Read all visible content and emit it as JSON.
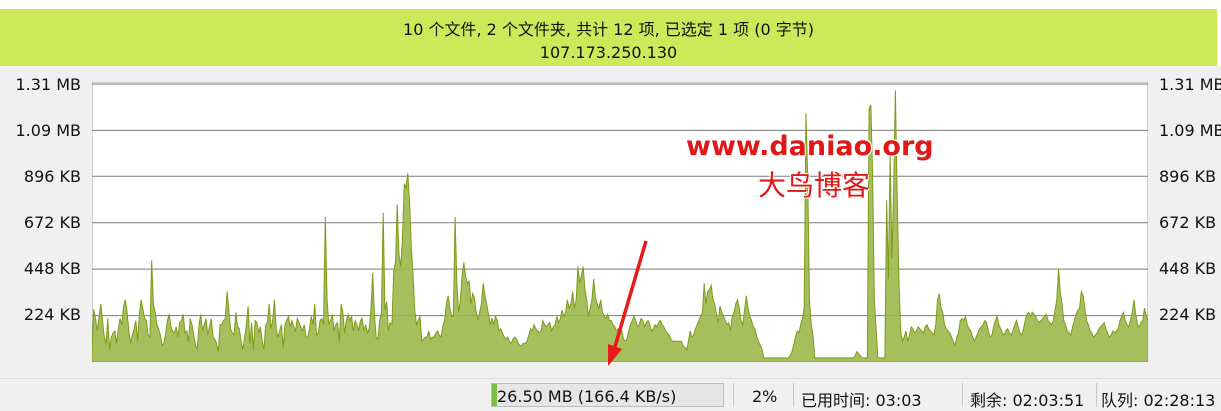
{
  "status_banner": {
    "summary": "10 个文件, 2 个文件夹, 共计 12 项, 已选定 1 项 (0 字节)",
    "ip": "107.173.250.130"
  },
  "watermark": {
    "url": "www.daniao.org",
    "name": "大鸟博客"
  },
  "chart_data": {
    "type": "area",
    "y_ticks": [
      "1.31 MB",
      "1.09 MB",
      "896 KB",
      "672 KB",
      "448 KB",
      "224 KB"
    ],
    "ylim_kb": [
      0,
      1341
    ],
    "fill_color": "#9ab84a",
    "line_color": "#7f9a1a",
    "grid": true,
    "values_kb": [
      60,
      254,
      210,
      150,
      215,
      280,
      200,
      120,
      90,
      210,
      60,
      120,
      140,
      150,
      90,
      160,
      210,
      180,
      270,
      300,
      240,
      150,
      90,
      130,
      160,
      200,
      100,
      230,
      300,
      255,
      210,
      200,
      130,
      120,
      490,
      280,
      240,
      180,
      160,
      130,
      80,
      90,
      140,
      200,
      230,
      170,
      150,
      140,
      170,
      120,
      190,
      200,
      230,
      140,
      150,
      100,
      210,
      180,
      130,
      80,
      60,
      180,
      230,
      150,
      180,
      210,
      130,
      170,
      210,
      120,
      110,
      90,
      50,
      180,
      180,
      200,
      210,
      340,
      250,
      160,
      140,
      130,
      240,
      170,
      160,
      100,
      60,
      120,
      180,
      270,
      90,
      190,
      60,
      200,
      190,
      140,
      170,
      100,
      60,
      180,
      190,
      280,
      160,
      200,
      300,
      160,
      120,
      150,
      180,
      70,
      180,
      200,
      220,
      170,
      200,
      170,
      150,
      210,
      190,
      170,
      150,
      180,
      120,
      120,
      160,
      220,
      180,
      280,
      130,
      140,
      200,
      210,
      180,
      700,
      300,
      180,
      200,
      230,
      150,
      180,
      190,
      100,
      280,
      240,
      140,
      200,
      230,
      200,
      220,
      150,
      200,
      180,
      150,
      200,
      210,
      150,
      180,
      140,
      160,
      250,
      430,
      230,
      120,
      110,
      200,
      240,
      720,
      250,
      290,
      150,
      190,
      180,
      440,
      480,
      760,
      520,
      460,
      600,
      860,
      840,
      910,
      780,
      560,
      420,
      250,
      180,
      200,
      220,
      100,
      110,
      120,
      120,
      150,
      110,
      120,
      120,
      140,
      150,
      130,
      120,
      170,
      200,
      280,
      320,
      260,
      220,
      220,
      700,
      380,
      240,
      300,
      420,
      480,
      410,
      380,
      390,
      280,
      330,
      310,
      240,
      200,
      240,
      280,
      380,
      320,
      280,
      230,
      180,
      210,
      180,
      220,
      200,
      150,
      160,
      140,
      120,
      110,
      120,
      100,
      90,
      110,
      120,
      110,
      90,
      80,
      80,
      90,
      90,
      100,
      130,
      160,
      150,
      180,
      160,
      150,
      140,
      150,
      200,
      180,
      170,
      180,
      190,
      150,
      170,
      180,
      220,
      190,
      210,
      250,
      220,
      240,
      300,
      260,
      280,
      340,
      260,
      300,
      460,
      380,
      420,
      460,
      350,
      300,
      220,
      260,
      300,
      400,
      310,
      280,
      260,
      300,
      240,
      220,
      210,
      230,
      200,
      200,
      180,
      170,
      150,
      160,
      140,
      150,
      110,
      100,
      110,
      150,
      180,
      200,
      220,
      200,
      170,
      180,
      210,
      200,
      170,
      190,
      200,
      180,
      150,
      160,
      180,
      170,
      190,
      200,
      180,
      170,
      150,
      140,
      130,
      110,
      100,
      100,
      100,
      100,
      100,
      100,
      80,
      70,
      60,
      100,
      150,
      120,
      130,
      160,
      180,
      200,
      220,
      240,
      380,
      280,
      340,
      350,
      370,
      300,
      280,
      230,
      190,
      270,
      240,
      220,
      200,
      180,
      190,
      150,
      220,
      240,
      280,
      300,
      260,
      200,
      180,
      250,
      320,
      260,
      220,
      200,
      170,
      160,
      120,
      100,
      80,
      60,
      20,
      20,
      20,
      20,
      20,
      20,
      20,
      20,
      20,
      20,
      20,
      20,
      20,
      20,
      20,
      30,
      50,
      80,
      120,
      150,
      140,
      180,
      210,
      260,
      1200,
      900,
      300,
      180,
      130,
      20,
      20,
      20,
      20,
      20,
      20,
      20,
      20,
      20,
      20,
      20,
      20,
      20,
      20,
      20,
      20,
      20,
      20,
      20,
      20,
      20,
      20,
      20,
      30,
      50,
      40,
      30,
      20,
      20,
      20,
      20,
      1220,
      1240,
      900,
      300,
      160,
      20,
      20,
      20,
      20,
      20,
      780,
      400,
      1000,
      500,
      830,
      1310,
      800,
      400,
      150,
      100,
      120,
      150,
      100,
      130,
      170,
      160,
      140,
      150,
      170,
      160,
      150,
      140,
      170,
      180,
      160,
      150,
      140,
      130,
      180,
      300,
      330,
      260,
      240,
      180,
      160,
      150,
      140,
      120,
      100,
      80,
      120,
      140,
      200,
      210,
      200,
      220,
      180,
      160,
      150,
      120,
      100,
      120,
      140,
      160,
      170,
      180,
      200,
      190,
      150,
      120,
      130,
      170,
      200,
      220,
      180,
      160,
      140,
      130,
      150,
      160,
      140,
      130,
      150,
      180,
      200,
      170,
      140,
      130,
      160,
      200,
      230,
      240,
      220,
      240,
      230,
      220,
      200,
      190,
      200,
      210,
      220,
      230,
      200,
      190,
      180,
      200,
      250,
      300,
      450,
      340,
      280,
      200,
      180,
      150,
      140,
      130,
      170,
      200,
      230,
      250,
      260,
      340,
      320,
      260,
      200,
      180,
      150,
      140,
      120,
      130,
      140,
      160,
      170,
      180,
      190,
      160,
      140,
      120,
      130,
      150,
      140,
      150,
      160,
      200,
      220,
      240,
      200,
      180,
      170,
      200,
      240,
      300,
      230,
      180,
      170,
      190,
      200,
      260,
      220,
      200
    ]
  },
  "bottom_bar": {
    "transfer": "26.50 MB (166.4 KB/s)",
    "progress_fraction": 0.02,
    "percent": "2%",
    "elapsed": "已用时间: 03:03",
    "remaining": "剩余: 02:03:51",
    "queue": "队列: 02:28:13"
  }
}
